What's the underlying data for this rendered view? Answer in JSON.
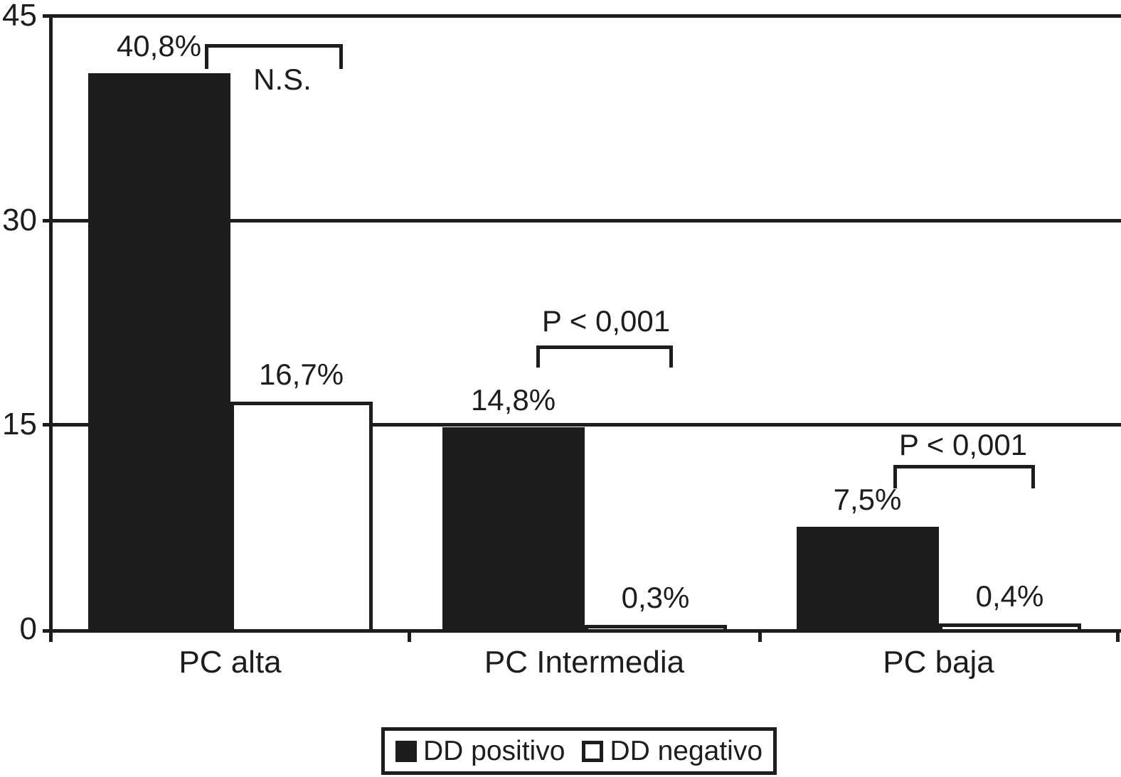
{
  "colors": {
    "ink": "#1d1d1b",
    "background": "#ffffff"
  },
  "chart_data": {
    "type": "bar",
    "title": "",
    "categories": [
      "PC alta",
      "PC Intermedia",
      "PC baja"
    ],
    "series": [
      {
        "name": "DD positivo",
        "fill": "solid-black",
        "values": [
          40.8,
          14.8,
          7.5
        ],
        "value_labels": [
          "40,8%",
          "14,8%",
          "7,5%"
        ]
      },
      {
        "name": "DD negativo",
        "fill": "white-outlined",
        "values": [
          16.7,
          0.3,
          0.4
        ],
        "value_labels": [
          "16,7%",
          "0,3%",
          "0,4%"
        ]
      }
    ],
    "yticks": [
      0,
      15,
      30,
      45
    ],
    "ylim": [
      0,
      45
    ],
    "grid": true,
    "legend_position": "bottom",
    "decimal_separator": ",",
    "annotations": [
      {
        "group": "PC alta",
        "compares": [
          "DD positivo",
          "DD negativo"
        ],
        "label": "N.S.",
        "label_side": "below"
      },
      {
        "group": "PC Intermedia",
        "compares": [
          "DD positivo",
          "DD negativo"
        ],
        "label": "P < 0,001",
        "label_side": "above"
      },
      {
        "group": "PC baja",
        "compares": [
          "DD positivo",
          "DD negativo"
        ],
        "label": "P < 0,001",
        "label_side": "above"
      }
    ]
  }
}
